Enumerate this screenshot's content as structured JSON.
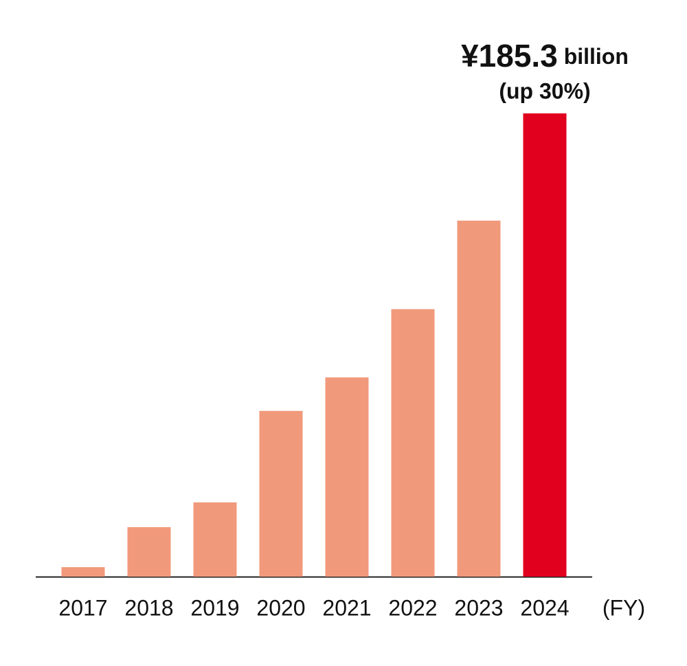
{
  "chart_data": {
    "type": "bar",
    "categories": [
      "2017",
      "2018",
      "2019",
      "2020",
      "2021",
      "2022",
      "2023",
      "2024"
    ],
    "values": [
      3.8,
      19.8,
      29.7,
      66.3,
      79.7,
      107.0,
      142.4,
      185.3
    ],
    "value_labels": [
      null,
      null,
      null,
      null,
      null,
      null,
      null,
      "¥185.3 billion"
    ],
    "colors": [
      "#f09a7b",
      "#f09a7b",
      "#f09a7b",
      "#f09a7b",
      "#f09a7b",
      "#f09a7b",
      "#f09a7b",
      "#e1001e"
    ],
    "annotation": "(up 30%)",
    "x_label": "(FY)",
    "ylim": [
      0,
      185.3
    ]
  }
}
